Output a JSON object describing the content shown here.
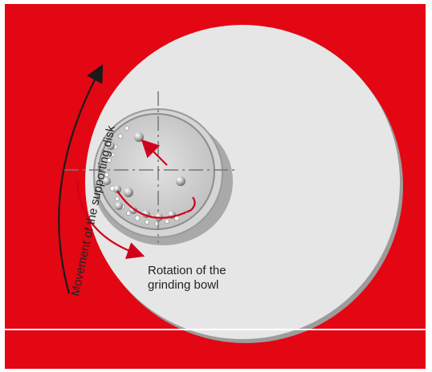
{
  "labels": {
    "disk_movement": "Movement of the supporting disk",
    "bowl_rotation_line1": "Rotation of the",
    "bowl_rotation_line2": "grinding bowl"
  },
  "colors": {
    "background_red": "#e30613",
    "disk": "#e6e6e6",
    "arrow_red": "#d0021b",
    "arrow_dark": "#1a1a1a",
    "crosshair": "#777777"
  }
}
